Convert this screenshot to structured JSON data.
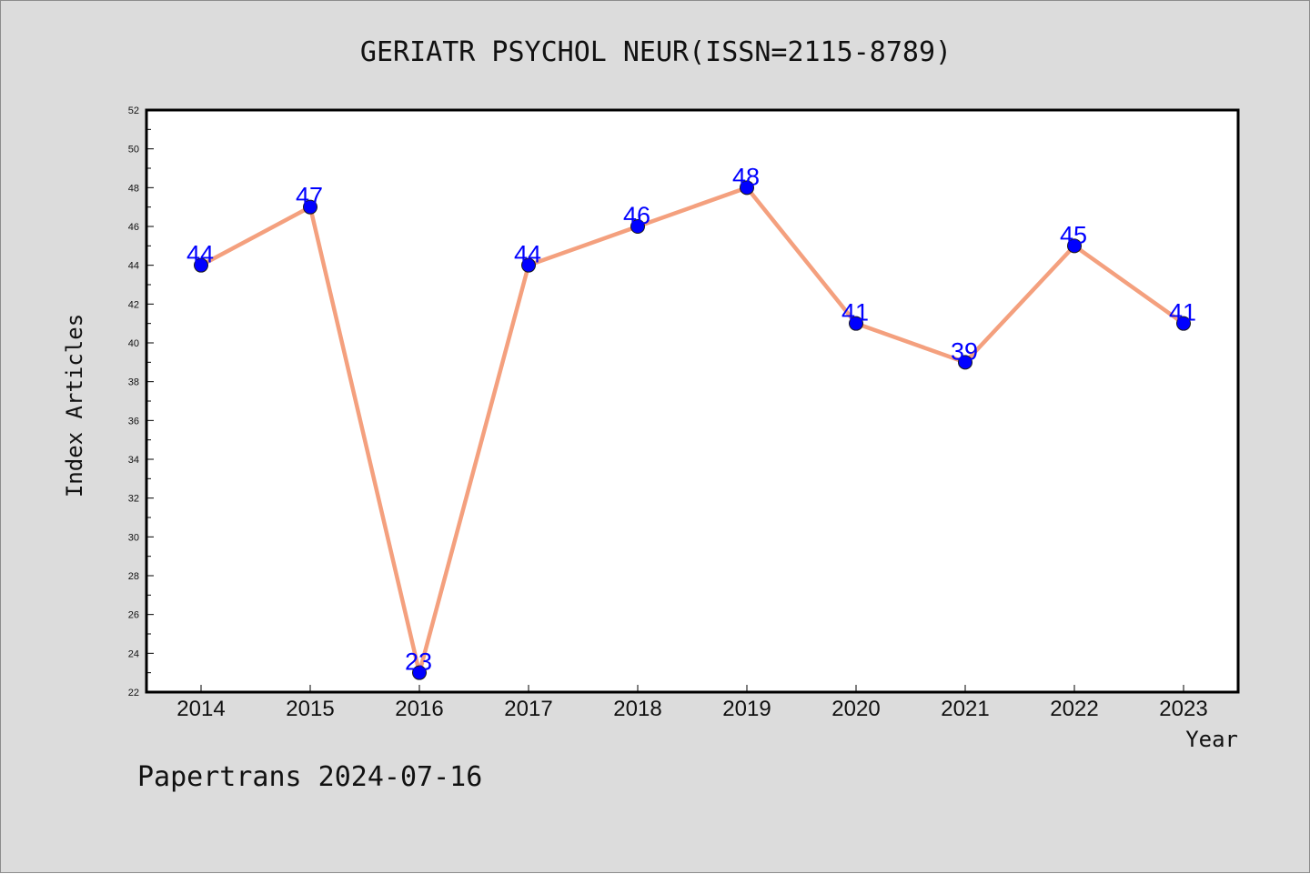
{
  "chart_data": {
    "type": "line",
    "title": "GERIATR PSYCHOL NEUR(ISSN=2115-8789)",
    "xlabel": "Year",
    "ylabel": "Index Articles",
    "categories": [
      "2014",
      "2015",
      "2016",
      "2017",
      "2018",
      "2019",
      "2020",
      "2021",
      "2022",
      "2023"
    ],
    "values": [
      44,
      47,
      23,
      44,
      46,
      48,
      41,
      39,
      45,
      41
    ],
    "ylim": [
      22,
      52
    ],
    "yticks": [
      "22",
      "24",
      "26",
      "28",
      "30",
      "32",
      "34",
      "36",
      "38",
      "40",
      "42",
      "44",
      "46",
      "48",
      "50",
      "52"
    ],
    "grid": false,
    "line_color": "#f4a07e",
    "marker_color": "#0000ff",
    "label_color": "#0000ff"
  },
  "footer": "Papertrans 2024-07-16"
}
